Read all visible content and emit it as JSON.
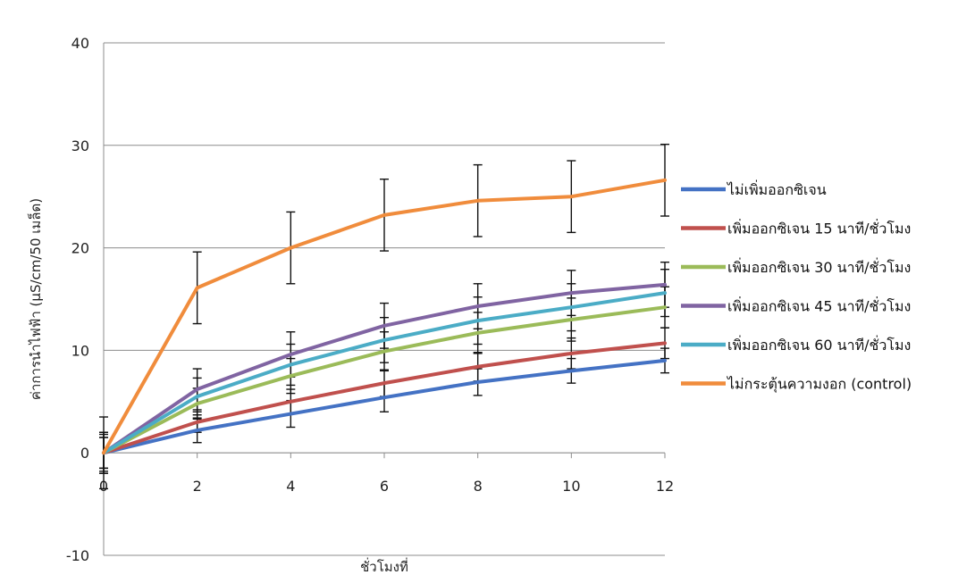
{
  "chart_data": {
    "type": "line",
    "xlabel": "ชั่วโมงที่",
    "ylabel": "ค่าการนำไฟฟ้า (µS/cm/50 เมล็ด)",
    "x": [
      0,
      2,
      4,
      6,
      8,
      10,
      12
    ],
    "xlim": [
      0,
      12
    ],
    "ylim": [
      -10,
      40
    ],
    "yticks": [
      -10,
      0,
      10,
      20,
      30,
      40
    ],
    "grid": true,
    "legend": "right",
    "series": [
      {
        "name": "ไม่เพิ่มออกซิเจน",
        "color": "#4472C4",
        "values": [
          0,
          2.2,
          3.8,
          5.4,
          6.9,
          8.0,
          9.0
        ],
        "err": [
          2.0,
          1.2,
          1.3,
          1.4,
          1.3,
          1.2,
          1.2
        ]
      },
      {
        "name": "เพิ่มออกซิเจน 15 นาที/ชั่วโมง",
        "color": "#C0504D",
        "values": [
          0,
          3.0,
          5.0,
          6.8,
          8.4,
          9.7,
          10.7
        ],
        "err": [
          2.0,
          1.0,
          1.2,
          1.3,
          1.4,
          1.5,
          1.5
        ]
      },
      {
        "name": "เพิ่มออกซิเจน 30 นาที/ชั่วโมง",
        "color": "#9BBB59",
        "values": [
          0,
          4.8,
          7.5,
          9.9,
          11.7,
          13.0,
          14.2
        ],
        "err": [
          1.8,
          1.5,
          1.7,
          1.9,
          2.0,
          2.1,
          2.0
        ]
      },
      {
        "name": "เพิ่มออกซิเจน 45 นาที/ชั่วโมง",
        "color": "#8064A2",
        "values": [
          0,
          6.2,
          9.6,
          12.4,
          14.3,
          15.6,
          16.4
        ],
        "err": [
          1.5,
          2.0,
          2.2,
          2.2,
          2.2,
          2.2,
          2.2
        ]
      },
      {
        "name": "เพิ่มออกซิเจน 60 นาที/ชั่วโมง",
        "color": "#4BACC6",
        "values": [
          0,
          5.5,
          8.6,
          11.0,
          12.9,
          14.2,
          15.6
        ],
        "err": [
          1.5,
          1.8,
          2.0,
          2.2,
          2.3,
          2.3,
          2.3
        ]
      },
      {
        "name": "ไม่กระตุ้นความงอก (control)",
        "color": "#F08C3C",
        "values": [
          0,
          16.1,
          20.0,
          23.2,
          24.6,
          25.0,
          26.6
        ],
        "err": [
          3.5,
          3.5,
          3.5,
          3.5,
          3.5,
          3.5,
          3.5
        ]
      }
    ]
  }
}
